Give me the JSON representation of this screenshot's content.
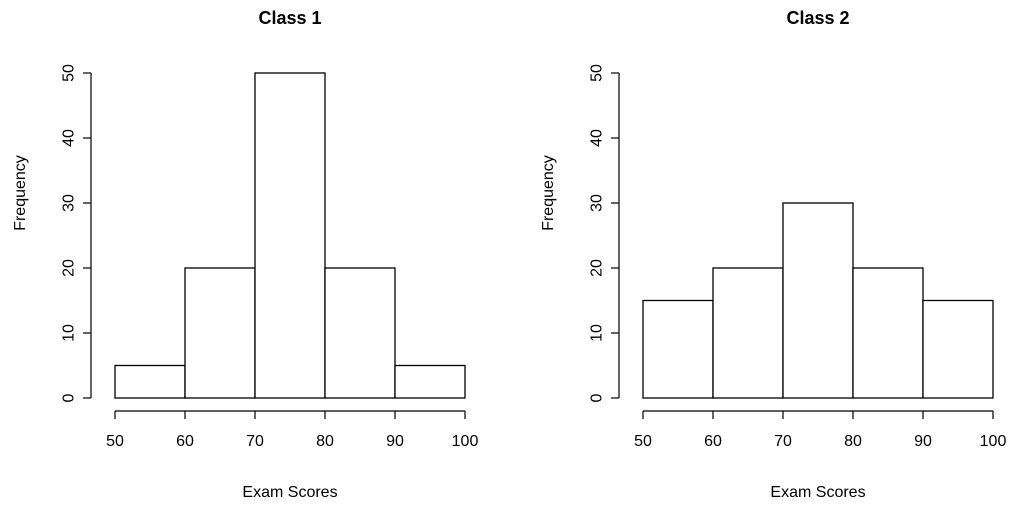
{
  "chart_data": [
    {
      "type": "bar",
      "histogram": true,
      "title": "Class 1",
      "xlabel": "Exam Scores",
      "ylabel": "Frequency",
      "bin_edges": [
        50,
        60,
        70,
        80,
        90,
        100
      ],
      "values": [
        5,
        20,
        50,
        20,
        5
      ],
      "xlim": [
        50,
        100
      ],
      "ylim": [
        0,
        50
      ],
      "xticks": [
        50,
        60,
        70,
        80,
        90,
        100
      ],
      "xtick_labels": [
        "50",
        "60",
        "70",
        "80",
        "90",
        "100"
      ],
      "yticks": [
        0,
        10,
        20,
        30,
        40,
        50
      ],
      "ytick_labels": [
        "0",
        "10",
        "20",
        "30",
        "40",
        "50"
      ],
      "grid": false,
      "bar_fill": "#ffffff",
      "bar_stroke": "#000000"
    },
    {
      "type": "bar",
      "histogram": true,
      "title": "Class 2",
      "xlabel": "Exam Scores",
      "ylabel": "Frequency",
      "bin_edges": [
        50,
        60,
        70,
        80,
        90,
        100
      ],
      "values": [
        15,
        20,
        30,
        20,
        15
      ],
      "xlim": [
        50,
        100
      ],
      "ylim": [
        0,
        50
      ],
      "xticks": [
        50,
        60,
        70,
        80,
        90,
        100
      ],
      "xtick_labels": [
        "50",
        "60",
        "70",
        "80",
        "90",
        "100"
      ],
      "yticks": [
        0,
        10,
        20,
        30,
        40,
        50
      ],
      "ytick_labels": [
        "0",
        "10",
        "20",
        "30",
        "40",
        "50"
      ],
      "grid": false,
      "bar_fill": "#ffffff",
      "bar_stroke": "#000000"
    }
  ]
}
